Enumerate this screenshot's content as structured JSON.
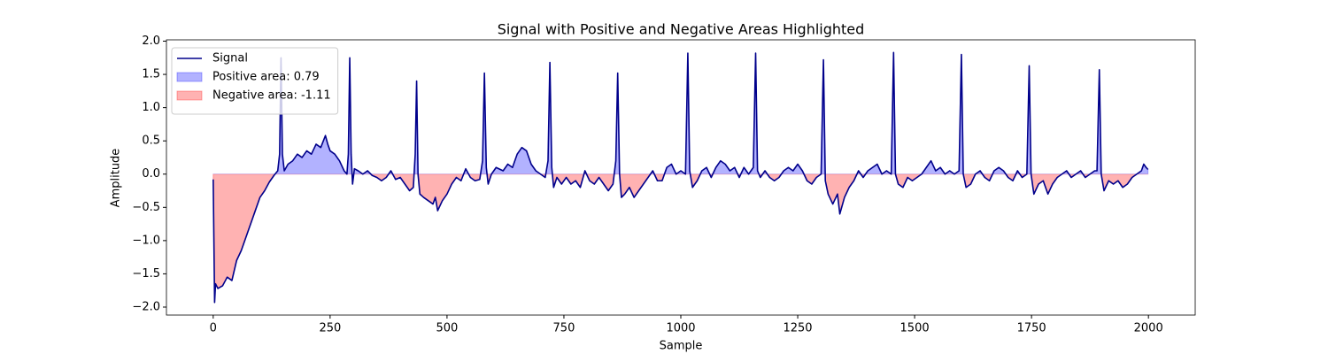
{
  "chart_data": {
    "type": "line",
    "title": "Signal with Positive and Negative Areas Highlighted",
    "xlabel": "Sample",
    "ylabel": "Amplitude",
    "x": [
      0,
      3,
      5,
      10,
      20,
      30,
      40,
      50,
      60,
      70,
      80,
      90,
      100,
      110,
      120,
      130,
      138,
      142,
      145,
      148,
      152,
      160,
      170,
      180,
      190,
      200,
      210,
      220,
      230,
      240,
      245,
      250,
      260,
      270,
      280,
      286,
      289,
      292,
      295,
      298,
      302,
      310,
      320,
      330,
      340,
      350,
      360,
      370,
      380,
      390,
      400,
      410,
      420,
      428,
      432,
      435,
      438,
      442,
      450,
      460,
      470,
      475,
      480,
      490,
      500,
      510,
      520,
      530,
      540,
      550,
      560,
      570,
      576,
      580,
      584,
      588,
      595,
      605,
      620,
      630,
      640,
      650,
      660,
      670,
      680,
      690,
      700,
      710,
      716,
      720,
      724,
      728,
      735,
      745,
      755,
      765,
      775,
      785,
      795,
      805,
      815,
      825,
      835,
      845,
      855,
      861,
      865,
      869,
      873,
      880,
      890,
      900,
      910,
      920,
      930,
      940,
      950,
      960,
      970,
      980,
      990,
      1000,
      1010,
      1015,
      1019,
      1025,
      1035,
      1045,
      1055,
      1065,
      1075,
      1085,
      1095,
      1105,
      1115,
      1125,
      1135,
      1145,
      1155,
      1160,
      1164,
      1170,
      1180,
      1190,
      1200,
      1210,
      1220,
      1230,
      1240,
      1250,
      1260,
      1270,
      1280,
      1290,
      1300,
      1305,
      1309,
      1315,
      1325,
      1335,
      1340,
      1350,
      1360,
      1370,
      1380,
      1390,
      1400,
      1410,
      1420,
      1430,
      1440,
      1450,
      1455,
      1459,
      1465,
      1475,
      1485,
      1495,
      1505,
      1515,
      1525,
      1535,
      1545,
      1555,
      1565,
      1575,
      1585,
      1595,
      1600,
      1604,
      1610,
      1620,
      1630,
      1640,
      1650,
      1660,
      1670,
      1680,
      1690,
      1700,
      1710,
      1720,
      1730,
      1740,
      1745,
      1749,
      1755,
      1765,
      1775,
      1785,
      1795,
      1805,
      1815,
      1825,
      1835,
      1845,
      1855,
      1865,
      1875,
      1885,
      1890,
      1895,
      1899,
      1905,
      1915,
      1925,
      1935,
      1945,
      1955,
      1965,
      1975,
      1985,
      1990,
      1995,
      1999
    ],
    "series": [
      {
        "name": "Signal",
        "color": "#00008b",
        "values": [
          -0.08,
          -1.93,
          -1.65,
          -1.72,
          -1.68,
          -1.55,
          -1.6,
          -1.3,
          -1.15,
          -0.95,
          -0.75,
          -0.55,
          -0.35,
          -0.25,
          -0.12,
          -0.02,
          0.05,
          0.3,
          1.75,
          0.3,
          0.05,
          0.15,
          0.2,
          0.3,
          0.25,
          0.35,
          0.3,
          0.45,
          0.4,
          0.58,
          0.45,
          0.35,
          0.3,
          0.2,
          0.05,
          0.0,
          0.3,
          1.75,
          0.3,
          -0.15,
          0.08,
          0.05,
          0.0,
          0.05,
          -0.02,
          -0.05,
          -0.1,
          -0.05,
          0.05,
          -0.08,
          -0.05,
          -0.15,
          -0.25,
          -0.2,
          0.3,
          1.4,
          0.0,
          -0.3,
          -0.35,
          -0.4,
          -0.45,
          -0.35,
          -0.55,
          -0.4,
          -0.3,
          -0.15,
          -0.05,
          -0.1,
          0.08,
          -0.05,
          -0.1,
          -0.08,
          0.2,
          1.52,
          0.1,
          -0.15,
          0.0,
          0.1,
          0.05,
          0.15,
          0.1,
          0.3,
          0.4,
          0.35,
          0.15,
          0.05,
          0.0,
          -0.05,
          0.2,
          1.68,
          0.1,
          -0.2,
          -0.05,
          -0.15,
          -0.05,
          -0.15,
          -0.1,
          -0.2,
          0.05,
          -0.1,
          -0.15,
          -0.05,
          -0.15,
          -0.25,
          -0.15,
          0.2,
          1.52,
          0.0,
          -0.35,
          -0.3,
          -0.2,
          -0.35,
          -0.25,
          -0.15,
          -0.05,
          0.05,
          -0.1,
          -0.1,
          0.1,
          0.15,
          0.0,
          0.05,
          0.0,
          1.82,
          0.05,
          -0.2,
          -0.1,
          0.05,
          0.1,
          -0.05,
          0.1,
          0.2,
          0.15,
          0.05,
          0.1,
          -0.05,
          0.1,
          0.0,
          0.1,
          1.82,
          0.05,
          -0.05,
          0.05,
          -0.05,
          -0.1,
          -0.05,
          0.05,
          0.1,
          0.05,
          0.15,
          0.05,
          -0.1,
          -0.15,
          -0.05,
          0.0,
          1.72,
          -0.1,
          -0.3,
          -0.45,
          -0.3,
          -0.6,
          -0.35,
          -0.2,
          -0.1,
          0.05,
          -0.05,
          0.05,
          0.1,
          0.15,
          0.0,
          0.05,
          0.0,
          1.83,
          0.0,
          -0.15,
          -0.2,
          -0.05,
          -0.1,
          -0.05,
          0.0,
          0.1,
          0.2,
          0.05,
          0.1,
          0.0,
          0.05,
          0.0,
          0.05,
          1.8,
          0.0,
          -0.2,
          -0.15,
          0.0,
          0.05,
          -0.05,
          -0.1,
          0.05,
          0.1,
          0.05,
          -0.05,
          -0.1,
          0.05,
          -0.05,
          0.0,
          1.63,
          0.0,
          -0.3,
          -0.15,
          -0.1,
          -0.3,
          -0.15,
          -0.05,
          0.0,
          0.05,
          -0.05,
          0.0,
          0.05,
          -0.05,
          0.0,
          0.05,
          0.05,
          1.57,
          0.0,
          -0.25,
          -0.1,
          -0.15,
          -0.1,
          -0.2,
          -0.15,
          -0.05,
          0.0,
          0.05,
          0.15,
          0.1,
          0.07
        ]
      }
    ],
    "fills": [
      {
        "name": "Positive area: 0.79",
        "color": "#0000ff",
        "alpha": 0.3,
        "side": "positive"
      },
      {
        "name": "Negative area: -1.11",
        "color": "#ff0000",
        "alpha": 0.3,
        "side": "negative"
      }
    ],
    "xlim": [
      -100,
      2100
    ],
    "ylim": [
      -2.12,
      2.02
    ],
    "xticks": [
      0,
      250,
      500,
      750,
      1000,
      1250,
      1500,
      1750,
      2000
    ],
    "yticks": [
      {
        "value": -2.0,
        "label": "−2.0"
      },
      {
        "value": -1.5,
        "label": "−1.5"
      },
      {
        "value": -1.0,
        "label": "−1.0"
      },
      {
        "value": -0.5,
        "label": "−0.5"
      },
      {
        "value": 0.0,
        "label": "0.0"
      },
      0.5,
      {
        "value": 1.0,
        "label": "1.0"
      },
      1.5,
      {
        "value": 2.0,
        "label": "2.0"
      }
    ],
    "legend": "upper left"
  }
}
